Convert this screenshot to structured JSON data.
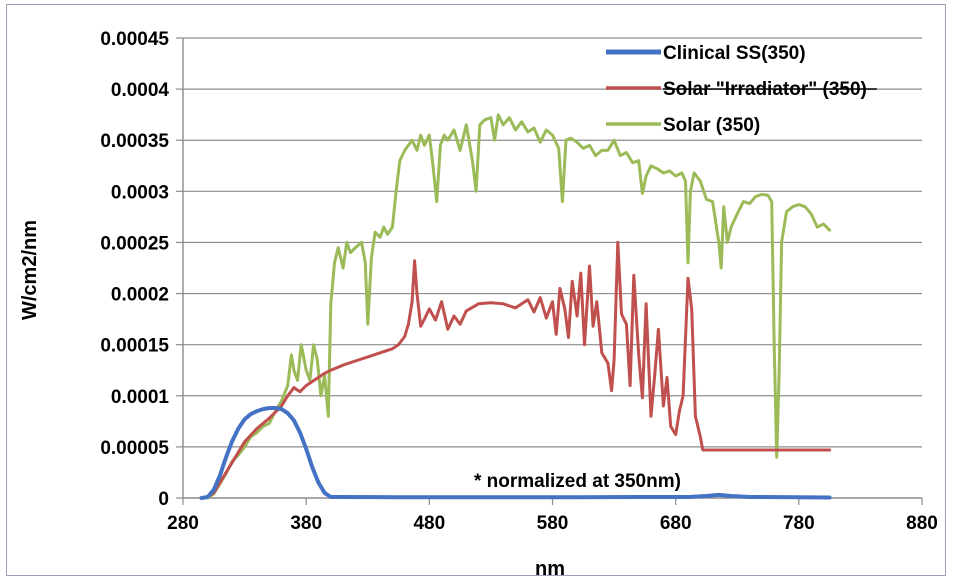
{
  "chart_data": {
    "type": "line",
    "title": "",
    "xlabel": "nm",
    "ylabel": "W/cm2/nm",
    "xlim": [
      280,
      880
    ],
    "ylim": [
      0,
      0.00045
    ],
    "x_ticks": [
      "280",
      "380",
      "480",
      "580",
      "680",
      "780",
      "880"
    ],
    "x_tick_values": [
      280,
      380,
      480,
      580,
      680,
      780,
      880
    ],
    "y_ticks": [
      "0",
      "0.00005",
      "0.0001",
      "0.00015",
      "0.0002",
      "0.00025",
      "0.0003",
      "0.00035",
      "0.0004",
      "0.00045"
    ],
    "y_tick_values": [
      0,
      5e-05,
      0.0001,
      0.00015,
      0.0002,
      0.00025,
      0.0003,
      0.00035,
      0.0004,
      0.00045
    ],
    "grid": "horizontal",
    "legend_position": "top-right",
    "annotation": "* normalized  at 350nm)",
    "series": [
      {
        "name": "Clinical SS(350)",
        "color": "#4472c4",
        "strike": false,
        "points": [
          [
            295,
            0
          ],
          [
            300,
            1e-06
          ],
          [
            305,
            8e-06
          ],
          [
            310,
            2.2e-05
          ],
          [
            315,
            4e-05
          ],
          [
            320,
            5.6e-05
          ],
          [
            325,
            6.8e-05
          ],
          [
            330,
            7.7e-05
          ],
          [
            335,
            8.2e-05
          ],
          [
            340,
            8.5e-05
          ],
          [
            345,
            8.7e-05
          ],
          [
            350,
            8.8e-05
          ],
          [
            355,
            8.8e-05
          ],
          [
            360,
            8.7e-05
          ],
          [
            365,
            8.3e-05
          ],
          [
            370,
            7.6e-05
          ],
          [
            375,
            6.4e-05
          ],
          [
            380,
            4.8e-05
          ],
          [
            385,
            3e-05
          ],
          [
            390,
            1.5e-05
          ],
          [
            395,
            5e-06
          ],
          [
            400,
            1e-06
          ],
          [
            410,
            1e-06
          ],
          [
            450,
            8e-07
          ],
          [
            500,
            8e-07
          ],
          [
            600,
            8e-07
          ],
          [
            650,
            1e-06
          ],
          [
            690,
            1e-06
          ],
          [
            705,
            2e-06
          ],
          [
            715,
            3e-06
          ],
          [
            725,
            2e-06
          ],
          [
            740,
            1e-06
          ],
          [
            780,
            8e-07
          ],
          [
            805,
            5e-07
          ]
        ]
      },
      {
        "name": "Solar \"Irradiator\" (350)",
        "color": "#c0504d",
        "strike": true,
        "points": [
          [
            295,
            0
          ],
          [
            300,
            1e-06
          ],
          [
            305,
            5e-06
          ],
          [
            310,
            1.5e-05
          ],
          [
            320,
            3.5e-05
          ],
          [
            330,
            5.5e-05
          ],
          [
            340,
            6.8e-05
          ],
          [
            350,
            7.8e-05
          ],
          [
            360,
            9e-05
          ],
          [
            365,
            0.0001
          ],
          [
            370,
            0.000108
          ],
          [
            375,
            0.000104
          ],
          [
            380,
            0.00011
          ],
          [
            385,
            0.000114
          ],
          [
            390,
            0.000118
          ],
          [
            395,
            0.000122
          ],
          [
            400,
            0.000125
          ],
          [
            410,
            0.00013
          ],
          [
            420,
            0.000134
          ],
          [
            430,
            0.000138
          ],
          [
            440,
            0.000142
          ],
          [
            450,
            0.000146
          ],
          [
            455,
            0.00015
          ],
          [
            460,
            0.000158
          ],
          [
            463,
            0.00017
          ],
          [
            466,
            0.000192
          ],
          [
            468,
            0.000232
          ],
          [
            470,
            0.0002
          ],
          [
            473,
            0.000168
          ],
          [
            476,
            0.000175
          ],
          [
            480,
            0.000185
          ],
          [
            485,
            0.000174
          ],
          [
            490,
            0.000192
          ],
          [
            495,
            0.000165
          ],
          [
            500,
            0.000178
          ],
          [
            505,
            0.00017
          ],
          [
            510,
            0.000183
          ],
          [
            520,
            0.00019
          ],
          [
            530,
            0.000191
          ],
          [
            540,
            0.00019
          ],
          [
            550,
            0.000186
          ],
          [
            560,
            0.000194
          ],
          [
            565,
            0.000182
          ],
          [
            570,
            0.000196
          ],
          [
            575,
            0.000176
          ],
          [
            580,
            0.000192
          ],
          [
            583,
            0.00016
          ],
          [
            586,
            0.000205
          ],
          [
            590,
            0.000185
          ],
          [
            593,
            0.000157
          ],
          [
            596,
            0.000212
          ],
          [
            600,
            0.000178
          ],
          [
            603,
            0.00022
          ],
          [
            606,
            0.00015
          ],
          [
            610,
            0.000227
          ],
          [
            613,
            0.000168
          ],
          [
            616,
            0.000192
          ],
          [
            620,
            0.000142
          ],
          [
            625,
            0.000132
          ],
          [
            628,
            0.000105
          ],
          [
            630,
            0.000135
          ],
          [
            633,
            0.00025
          ],
          [
            636,
            0.00018
          ],
          [
            640,
            0.00017
          ],
          [
            643,
            0.00011
          ],
          [
            646,
            0.000218
          ],
          [
            650,
            0.00014
          ],
          [
            653,
            9.8e-05
          ],
          [
            656,
            0.00019
          ],
          [
            660,
            8e-05
          ],
          [
            663,
            0.00012
          ],
          [
            666,
            0.000165
          ],
          [
            670,
            9e-05
          ],
          [
            673,
            0.000118
          ],
          [
            676,
            7e-05
          ],
          [
            680,
            6.2e-05
          ],
          [
            683,
            8.5e-05
          ],
          [
            686,
            0.0001
          ],
          [
            690,
            0.000215
          ],
          [
            693,
            0.000185
          ],
          [
            696,
            8e-05
          ],
          [
            700,
            6e-05
          ],
          [
            702,
            4.7e-05
          ],
          [
            720,
            4.7e-05
          ],
          [
            760,
            4.7e-05
          ],
          [
            800,
            4.7e-05
          ],
          [
            805,
            4.7e-05
          ]
        ]
      },
      {
        "name": "Solar (350)",
        "color": "#9bbb59",
        "strike": false,
        "points": [
          [
            300,
            0
          ],
          [
            305,
            4e-06
          ],
          [
            310,
            1.4e-05
          ],
          [
            315,
            2.4e-05
          ],
          [
            320,
            3.6e-05
          ],
          [
            325,
            4.2e-05
          ],
          [
            330,
            5e-05
          ],
          [
            335,
            6e-05
          ],
          [
            340,
            6.4e-05
          ],
          [
            345,
            7e-05
          ],
          [
            350,
            7.3e-05
          ],
          [
            355,
            8.5e-05
          ],
          [
            360,
            9.5e-05
          ],
          [
            365,
            0.00011
          ],
          [
            368,
            0.00014
          ],
          [
            370,
            0.000125
          ],
          [
            373,
            0.000115
          ],
          [
            376,
            0.00015
          ],
          [
            380,
            0.000125
          ],
          [
            383,
            0.000115
          ],
          [
            386,
            0.00015
          ],
          [
            389,
            0.000135
          ],
          [
            392,
            0.0001
          ],
          [
            395,
            0.00012
          ],
          [
            398,
            8e-05
          ],
          [
            400,
            0.00019
          ],
          [
            403,
            0.00023
          ],
          [
            406,
            0.000245
          ],
          [
            410,
            0.000225
          ],
          [
            413,
            0.00025
          ],
          [
            416,
            0.00024
          ],
          [
            420,
            0.000245
          ],
          [
            425,
            0.00025
          ],
          [
            428,
            0.00023
          ],
          [
            430,
            0.00017
          ],
          [
            433,
            0.000235
          ],
          [
            436,
            0.00026
          ],
          [
            440,
            0.000255
          ],
          [
            443,
            0.000265
          ],
          [
            446,
            0.000258
          ],
          [
            450,
            0.000265
          ],
          [
            453,
            0.0003
          ],
          [
            456,
            0.00033
          ],
          [
            460,
            0.00034
          ],
          [
            463,
            0.000345
          ],
          [
            466,
            0.00035
          ],
          [
            470,
            0.00034
          ],
          [
            473,
            0.000355
          ],
          [
            476,
            0.000345
          ],
          [
            480,
            0.000355
          ],
          [
            483,
            0.000325
          ],
          [
            486,
            0.00029
          ],
          [
            489,
            0.000345
          ],
          [
            492,
            0.000355
          ],
          [
            495,
            0.00035
          ],
          [
            500,
            0.00036
          ],
          [
            505,
            0.00034
          ],
          [
            510,
            0.000365
          ],
          [
            515,
            0.00033
          ],
          [
            518,
            0.0003
          ],
          [
            521,
            0.000365
          ],
          [
            525,
            0.00037
          ],
          [
            530,
            0.000372
          ],
          [
            533,
            0.00035
          ],
          [
            536,
            0.000375
          ],
          [
            540,
            0.000365
          ],
          [
            545,
            0.000372
          ],
          [
            550,
            0.00036
          ],
          [
            555,
            0.000368
          ],
          [
            560,
            0.000358
          ],
          [
            565,
            0.000362
          ],
          [
            570,
            0.000348
          ],
          [
            575,
            0.00036
          ],
          [
            580,
            0.000355
          ],
          [
            585,
            0.000342
          ],
          [
            588,
            0.00029
          ],
          [
            591,
            0.00035
          ],
          [
            595,
            0.000352
          ],
          [
            600,
            0.000348
          ],
          [
            605,
            0.000342
          ],
          [
            610,
            0.000345
          ],
          [
            615,
            0.000335
          ],
          [
            620,
            0.00034
          ],
          [
            625,
            0.00034
          ],
          [
            630,
            0.00035
          ],
          [
            635,
            0.000335
          ],
          [
            640,
            0.000338
          ],
          [
            645,
            0.000328
          ],
          [
            650,
            0.00033
          ],
          [
            653,
            0.000298
          ],
          [
            656,
            0.000315
          ],
          [
            660,
            0.000325
          ],
          [
            665,
            0.000322
          ],
          [
            670,
            0.000318
          ],
          [
            675,
            0.00032
          ],
          [
            680,
            0.000315
          ],
          [
            685,
            0.000318
          ],
          [
            688,
            0.00031
          ],
          [
            690,
            0.00023
          ],
          [
            692,
            0.0003
          ],
          [
            695,
            0.000318
          ],
          [
            700,
            0.00031
          ],
          [
            705,
            0.000292
          ],
          [
            710,
            0.00029
          ],
          [
            715,
            0.00025
          ],
          [
            717,
            0.000225
          ],
          [
            719,
            0.000285
          ],
          [
            722,
            0.00025
          ],
          [
            725,
            0.000265
          ],
          [
            730,
            0.000278
          ],
          [
            735,
            0.00029
          ],
          [
            740,
            0.000288
          ],
          [
            745,
            0.000295
          ],
          [
            750,
            0.000297
          ],
          [
            755,
            0.000296
          ],
          [
            758,
            0.00029
          ],
          [
            760,
            0.00015
          ],
          [
            762,
            4e-05
          ],
          [
            764,
            0.00012
          ],
          [
            766,
            0.00025
          ],
          [
            770,
            0.00028
          ],
          [
            775,
            0.000285
          ],
          [
            780,
            0.000287
          ],
          [
            785,
            0.000285
          ],
          [
            790,
            0.000278
          ],
          [
            795,
            0.000265
          ],
          [
            800,
            0.000268
          ],
          [
            805,
            0.000262
          ]
        ]
      }
    ]
  }
}
